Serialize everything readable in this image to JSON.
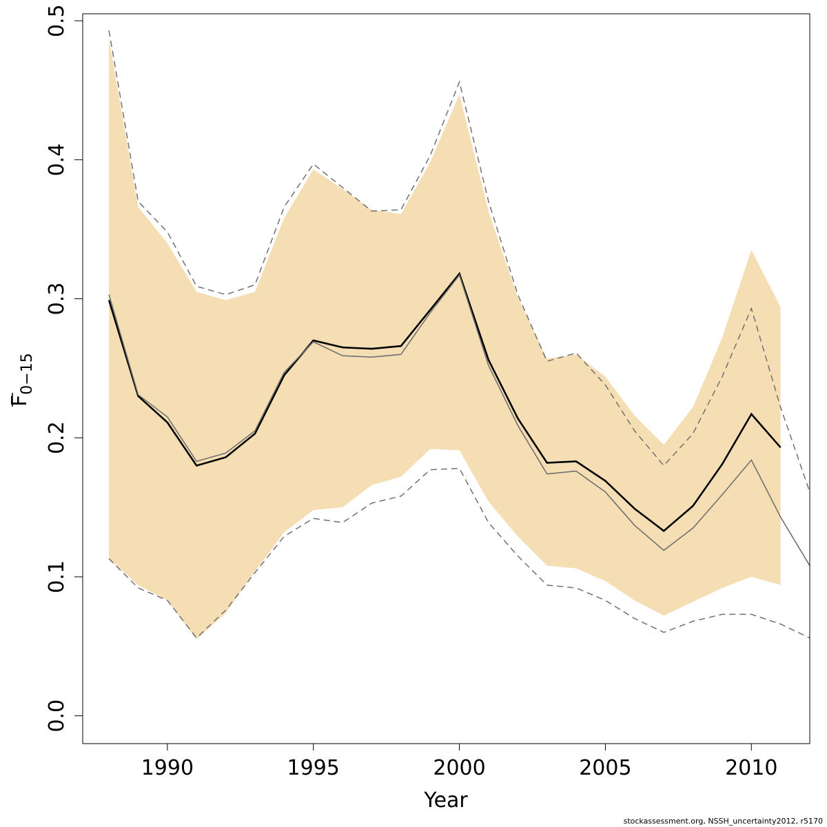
{
  "chart_data": {
    "type": "line",
    "title": "",
    "xlabel": "Year",
    "ylabel_main": "F",
    "ylabel_sub": "0−15",
    "xlim": [
      1987.1,
      2012
    ],
    "ylim": [
      -0.02,
      0.505
    ],
    "x_ticks": [
      "1990",
      "1995",
      "2000",
      "2005",
      "2010"
    ],
    "y_ticks": [
      "0.0",
      "0.1",
      "0.2",
      "0.3",
      "0.4",
      "0.5"
    ],
    "band_color": "#f5deb3",
    "series": [
      {
        "role": "band",
        "x": [
          1988,
          1989,
          1990,
          1991,
          1992,
          1993,
          1994,
          1995,
          1996,
          1997,
          1998,
          1999,
          2000,
          2001,
          2002,
          2003,
          2004,
          2005,
          2006,
          2007,
          2008,
          2009,
          2010,
          2011
        ],
        "lower": [
          0.113,
          0.094,
          0.083,
          0.055,
          0.074,
          0.104,
          0.132,
          0.148,
          0.15,
          0.166,
          0.172,
          0.192,
          0.191,
          0.154,
          0.129,
          0.108,
          0.106,
          0.097,
          0.083,
          0.072,
          0.082,
          0.092,
          0.1,
          0.094
        ],
        "upper": [
          0.487,
          0.366,
          0.34,
          0.305,
          0.299,
          0.305,
          0.358,
          0.393,
          0.379,
          0.364,
          0.361,
          0.398,
          0.447,
          0.363,
          0.301,
          0.257,
          0.26,
          0.244,
          0.216,
          0.195,
          0.222,
          0.272,
          0.335,
          0.294
        ]
      },
      {
        "role": "estimate",
        "color": "#000000",
        "x": [
          1988,
          1989,
          1990,
          1991,
          1992,
          1993,
          1994,
          1995,
          1996,
          1997,
          1998,
          1999,
          2000,
          2001,
          2002,
          2003,
          2004,
          2005,
          2006,
          2007,
          2008,
          2009,
          2010,
          2011
        ],
        "values": [
          0.299,
          0.23,
          0.211,
          0.18,
          0.186,
          0.203,
          0.245,
          0.27,
          0.265,
          0.264,
          0.266,
          0.292,
          0.318,
          0.256,
          0.214,
          0.182,
          0.183,
          0.169,
          0.149,
          0.133,
          0.151,
          0.181,
          0.217,
          0.193
        ]
      },
      {
        "role": "comparison",
        "color": "#707070",
        "x": [
          1988,
          1989,
          1990,
          1991,
          1992,
          1993,
          1994,
          1995,
          1996,
          1997,
          1998,
          1999,
          2000,
          2001,
          2002,
          2003,
          2004,
          2005,
          2006,
          2007,
          2008,
          2009,
          2010,
          2011,
          2012
        ],
        "values": [
          0.303,
          0.231,
          0.215,
          0.183,
          0.189,
          0.205,
          0.247,
          0.269,
          0.259,
          0.258,
          0.26,
          0.29,
          0.317,
          0.252,
          0.209,
          0.174,
          0.176,
          0.161,
          0.137,
          0.119,
          0.135,
          0.159,
          0.184,
          0.143,
          0.108
        ]
      },
      {
        "role": "comparison-upper",
        "color": "#707070",
        "x": [
          1988,
          1989,
          1990,
          1991,
          1992,
          1993,
          1994,
          1995,
          1996,
          1997,
          1998,
          1999,
          2000,
          2001,
          2002,
          2003,
          2004,
          2005,
          2006,
          2007,
          2008,
          2009,
          2010,
          2011,
          2012
        ],
        "values": [
          0.493,
          0.37,
          0.348,
          0.309,
          0.303,
          0.31,
          0.366,
          0.397,
          0.38,
          0.363,
          0.364,
          0.403,
          0.456,
          0.37,
          0.303,
          0.255,
          0.261,
          0.238,
          0.205,
          0.18,
          0.203,
          0.244,
          0.293,
          0.222,
          0.161
        ]
      },
      {
        "role": "comparison-lower",
        "color": "#707070",
        "x": [
          1988,
          1989,
          1990,
          1991,
          1992,
          1993,
          1994,
          1995,
          1996,
          1997,
          1998,
          1999,
          2000,
          2001,
          2002,
          2003,
          2004,
          2005,
          2006,
          2007,
          2008,
          2009,
          2010,
          2011,
          2012
        ],
        "values": [
          0.113,
          0.092,
          0.083,
          0.056,
          0.076,
          0.103,
          0.129,
          0.142,
          0.139,
          0.153,
          0.158,
          0.177,
          0.178,
          0.139,
          0.115,
          0.094,
          0.092,
          0.083,
          0.07,
          0.06,
          0.068,
          0.073,
          0.073,
          0.066,
          0.056
        ]
      }
    ]
  },
  "credit": "stockassessment.org, NSSH_uncertainty2012, r5170"
}
